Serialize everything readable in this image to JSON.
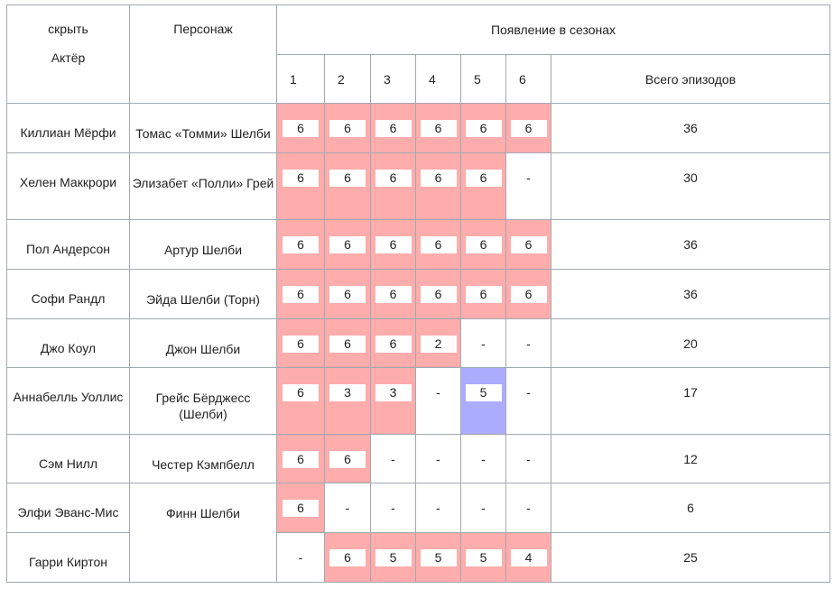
{
  "header": {
    "hide_label": "скрыть",
    "actor": "Актёр",
    "character": "Персонаж",
    "appearances": "Появление в сезонах",
    "seasons": [
      "1",
      "2",
      "3",
      "4",
      "5",
      "6"
    ],
    "total": "Всего эпизодов"
  },
  "colors": {
    "main_cast": "#ffacac",
    "recurring": "#acacff",
    "border": "#a2a9b1"
  },
  "rows": [
    {
      "actor": "Киллиан Мёрфи",
      "character": "Томас «Томми» Шелби",
      "seasons": [
        {
          "v": "6",
          "c": "pink"
        },
        {
          "v": "6",
          "c": "pink"
        },
        {
          "v": "6",
          "c": "pink"
        },
        {
          "v": "6",
          "c": "pink"
        },
        {
          "v": "6",
          "c": "pink"
        },
        {
          "v": "6",
          "c": "pink"
        }
      ],
      "total": "36"
    },
    {
      "actor": "Хелен Маккрори",
      "character": "Элизабет «Полли» Грей",
      "seasons": [
        {
          "v": "6",
          "c": "pink"
        },
        {
          "v": "6",
          "c": "pink"
        },
        {
          "v": "6",
          "c": "pink"
        },
        {
          "v": "6",
          "c": "pink"
        },
        {
          "v": "6",
          "c": "pink"
        },
        {
          "v": "-",
          "c": ""
        }
      ],
      "total": "30"
    },
    {
      "actor": "Пол Андерсон",
      "character": "Артур Шелби",
      "seasons": [
        {
          "v": "6",
          "c": "pink"
        },
        {
          "v": "6",
          "c": "pink"
        },
        {
          "v": "6",
          "c": "pink"
        },
        {
          "v": "6",
          "c": "pink"
        },
        {
          "v": "6",
          "c": "pink"
        },
        {
          "v": "6",
          "c": "pink"
        }
      ],
      "total": "36"
    },
    {
      "actor": "Софи Рандл",
      "character": "Эйда Шелби (Торн)",
      "seasons": [
        {
          "v": "6",
          "c": "pink"
        },
        {
          "v": "6",
          "c": "pink"
        },
        {
          "v": "6",
          "c": "pink"
        },
        {
          "v": "6",
          "c": "pink"
        },
        {
          "v": "6",
          "c": "pink"
        },
        {
          "v": "6",
          "c": "pink"
        }
      ],
      "total": "36"
    },
    {
      "actor": "Джо Коул",
      "character": "Джон Шелби",
      "seasons": [
        {
          "v": "6",
          "c": "pink"
        },
        {
          "v": "6",
          "c": "pink"
        },
        {
          "v": "6",
          "c": "pink"
        },
        {
          "v": "2",
          "c": "pink"
        },
        {
          "v": "-",
          "c": ""
        },
        {
          "v": "-",
          "c": ""
        }
      ],
      "total": "20"
    },
    {
      "actor": "Аннабелль Уоллис",
      "character": "Грейс Бёрджесс (Шелби)",
      "seasons": [
        {
          "v": "6",
          "c": "pink"
        },
        {
          "v": "3",
          "c": "pink"
        },
        {
          "v": "3",
          "c": "pink"
        },
        {
          "v": "-",
          "c": ""
        },
        {
          "v": "5",
          "c": "blue"
        },
        {
          "v": "-",
          "c": ""
        }
      ],
      "total": "17"
    },
    {
      "actor": "Сэм Нилл",
      "character": "Честер Кэмпбелл",
      "seasons": [
        {
          "v": "6",
          "c": "pink"
        },
        {
          "v": "6",
          "c": "pink"
        },
        {
          "v": "-",
          "c": ""
        },
        {
          "v": "-",
          "c": ""
        },
        {
          "v": "-",
          "c": ""
        },
        {
          "v": "-",
          "c": ""
        }
      ],
      "total": "12"
    },
    {
      "actor": "Элфи Эванс-Мис",
      "character": "Финн Шелби",
      "seasons": [
        {
          "v": "6",
          "c": "pink"
        },
        {
          "v": "-",
          "c": ""
        },
        {
          "v": "-",
          "c": ""
        },
        {
          "v": "-",
          "c": ""
        },
        {
          "v": "-",
          "c": ""
        },
        {
          "v": "-",
          "c": ""
        }
      ],
      "total": "6"
    },
    {
      "actor": "Гарри Киртон",
      "character": "",
      "seasons": [
        {
          "v": "-",
          "c": ""
        },
        {
          "v": "6",
          "c": "pink"
        },
        {
          "v": "5",
          "c": "pink"
        },
        {
          "v": "5",
          "c": "pink"
        },
        {
          "v": "5",
          "c": "pink"
        },
        {
          "v": "4",
          "c": "pink"
        }
      ],
      "total": "25"
    }
  ]
}
